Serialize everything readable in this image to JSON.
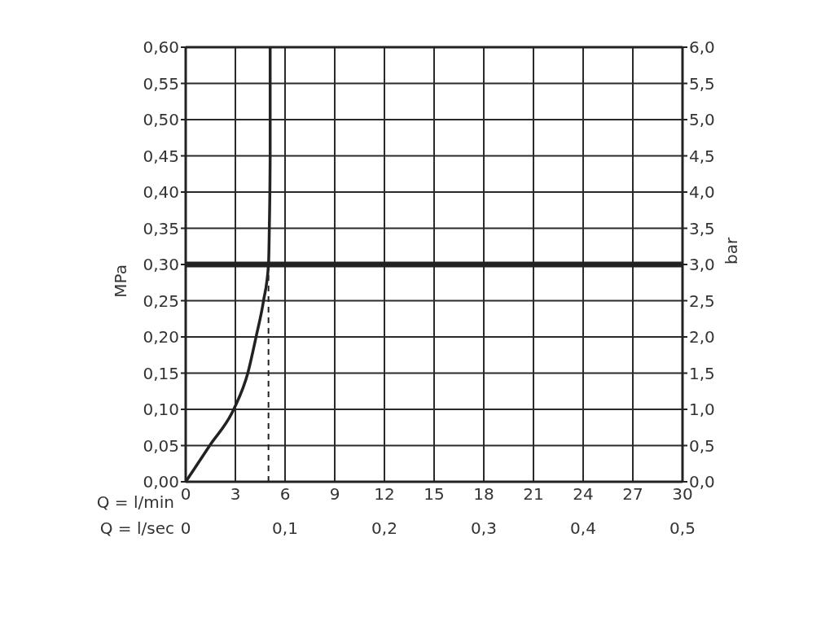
{
  "chart_data": {
    "type": "line",
    "xlabel": "Q = l/min",
    "x2label": "Q = l/sec",
    "ylabel": "MPa",
    "y2label": "bar",
    "series": [
      {
        "color": "#222222",
        "x": [
          0,
          1.45,
          2.9,
          3.75,
          4.25,
          4.7,
          5.0,
          5.05,
          5.1,
          5.1
        ],
        "values": [
          0,
          0.05,
          0.1,
          0.15,
          0.2,
          0.25,
          0.3,
          0.35,
          0.45,
          0.6
        ]
      },
      {
        "color": "#222222",
        "line_style": "dashed",
        "x": [
          5.0,
          5.0
        ],
        "values": [
          0,
          0.3
        ]
      }
    ],
    "ref_lines": [
      {
        "axis": "y",
        "value": 0.3,
        "color": "#222222"
      }
    ],
    "xlim": [
      0,
      30
    ],
    "xticks": [
      0,
      3,
      6,
      9,
      12,
      15,
      18,
      21,
      24,
      27,
      30
    ],
    "x2lim": [
      0,
      0.5
    ],
    "x2ticks": [
      0,
      {
        "value": 0.1,
        "label": "0,1"
      },
      {
        "value": 0.2,
        "label": "0,2"
      },
      {
        "value": 0.3,
        "label": "0,3"
      },
      {
        "value": 0.4,
        "label": "0,4"
      },
      {
        "value": 0.5,
        "label": "0,5"
      }
    ],
    "ylim": [
      0,
      0.6
    ],
    "yticks": [
      {
        "value": 0,
        "label": "0,00"
      },
      {
        "value": 0.05,
        "label": "0,05"
      },
      {
        "value": 0.1,
        "label": "0,10"
      },
      {
        "value": 0.15,
        "label": "0,15"
      },
      {
        "value": 0.2,
        "label": "0,20"
      },
      {
        "value": 0.25,
        "label": "0,25"
      },
      {
        "value": 0.3,
        "label": "0,30"
      },
      {
        "value": 0.35,
        "label": "0,35"
      },
      {
        "value": 0.4,
        "label": "0,40"
      },
      {
        "value": 0.45,
        "label": "0,45"
      },
      {
        "value": 0.5,
        "label": "0,50"
      },
      {
        "value": 0.55,
        "label": "0,55"
      },
      {
        "value": 0.6,
        "label": "0,60"
      }
    ],
    "y2lim": [
      0,
      6
    ],
    "y2ticks": [
      {
        "value": 0,
        "label": "0,0"
      },
      {
        "value": 0.5,
        "label": "0,5"
      },
      {
        "value": 1,
        "label": "1,0"
      },
      {
        "value": 1.5,
        "label": "1,5"
      },
      {
        "value": 2,
        "label": "2,0"
      },
      {
        "value": 2.5,
        "label": "2,5"
      },
      {
        "value": 3,
        "label": "3,0"
      },
      {
        "value": 3.5,
        "label": "3,5"
      },
      {
        "value": 4,
        "label": "4,0"
      },
      {
        "value": 4.5,
        "label": "4,5"
      },
      {
        "value": 5,
        "label": "5,0"
      },
      {
        "value": 5.5,
        "label": "5,5"
      },
      {
        "value": 6,
        "label": "6,0"
      }
    ],
    "grid": true,
    "marker": "none"
  }
}
